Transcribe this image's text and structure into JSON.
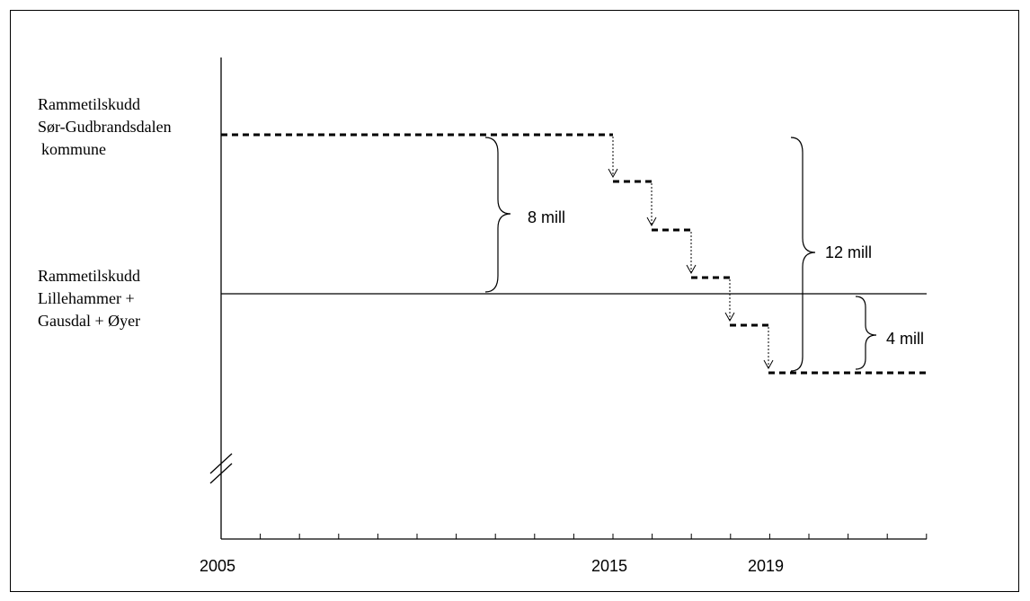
{
  "labels": {
    "sor_line1": "Rammetilskudd",
    "sor_line2": "Sør-Gudbrandsdalen",
    "sor_line3": "kommune",
    "lgo_line1": "Rammetilskudd",
    "lgo_line2": "Lillehammer +",
    "lgo_line3": "Gausdal + Øyer"
  },
  "brackets": {
    "b8": "8 mill",
    "b12": "12 mill",
    "b4": "4 mill"
  },
  "x_axis": {
    "tick_labels": [
      "2005",
      "2015",
      "2019"
    ]
  },
  "colors": {
    "line": "#000000"
  }
}
